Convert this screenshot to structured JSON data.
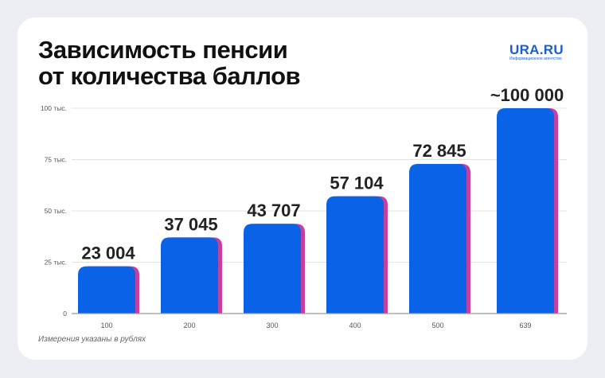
{
  "title_line1": "Зависимость пенсии",
  "title_line2": "от количества баллов",
  "logo": {
    "main": "URA.RU",
    "sub": "Информационное агентство"
  },
  "note": "Измерения указаны в рублях",
  "colors": {
    "bar": "#0a63e6",
    "shadow": "#c43fa0",
    "grid": "#e3e3e3",
    "axis": "#999999"
  },
  "chart_data": {
    "type": "bar",
    "title": "Зависимость пенсии от количества баллов",
    "xlabel": "",
    "ylabel": "",
    "categories": [
      "100",
      "200",
      "300",
      "400",
      "500",
      "639"
    ],
    "values": [
      23004,
      37045,
      43707,
      57104,
      72845,
      100000
    ],
    "data_labels": [
      "23 004",
      "37 045",
      "43 707",
      "57 104",
      "72 845",
      "~100 000"
    ],
    "ylim": [
      0,
      100000
    ],
    "yticks": [
      0,
      25000,
      50000,
      75000,
      100000
    ],
    "ytick_labels": [
      "0",
      "25 тыс.",
      "50 тыс.",
      "75 тыс.",
      "100 тыс."
    ],
    "grid": true
  }
}
